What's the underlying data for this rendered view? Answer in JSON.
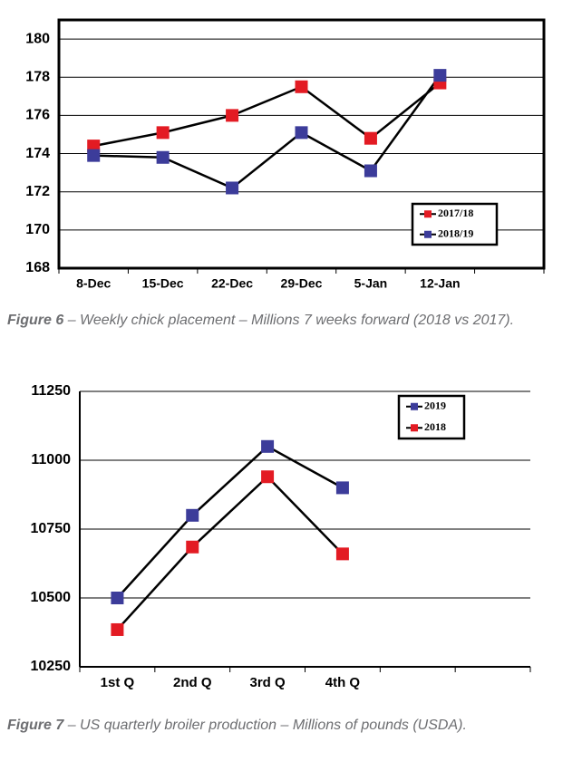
{
  "chart_data": [
    {
      "type": "line",
      "categories": [
        "8-Dec",
        "15-Dec",
        "22-Dec",
        "29-Dec",
        "5-Jan",
        "12-Jan",
        null
      ],
      "series": [
        {
          "name": "2017/18",
          "color": "#e31b23",
          "values": [
            174.4,
            175.1,
            176.0,
            177.5,
            174.8,
            177.7,
            null
          ]
        },
        {
          "name": "2018/19",
          "color": "#3c3c9a",
          "values": [
            173.9,
            173.8,
            172.2,
            175.1,
            173.1,
            178.1,
            null
          ]
        }
      ],
      "ylim": [
        168,
        181
      ],
      "yticks": [
        168,
        170,
        172,
        174,
        176,
        178,
        180
      ],
      "grid": true,
      "legend": "lower right",
      "caption": {
        "label": "Figure 6",
        "text": "– Weekly chick placement – Millions 7 weeks forward (2018 vs 2017)."
      }
    },
    {
      "type": "line",
      "categories": [
        "1st Q",
        "2nd Q",
        "3rd Q",
        "4th Q",
        null,
        null
      ],
      "series": [
        {
          "name": "2019",
          "color": "#3c3c9a",
          "values": [
            10500,
            10800,
            11050,
            10900,
            null,
            null
          ]
        },
        {
          "name": "2018",
          "color": "#e31b23",
          "values": [
            10385,
            10685,
            10940,
            10660,
            null,
            null
          ]
        }
      ],
      "ylim": [
        10250,
        11250
      ],
      "yticks": [
        10250,
        10500,
        10750,
        11000,
        11250
      ],
      "grid": true,
      "legend": "upper right",
      "caption": {
        "label": "Figure 7",
        "text": "– US quarterly broiler production – Millions of pounds (USDA)."
      }
    }
  ]
}
